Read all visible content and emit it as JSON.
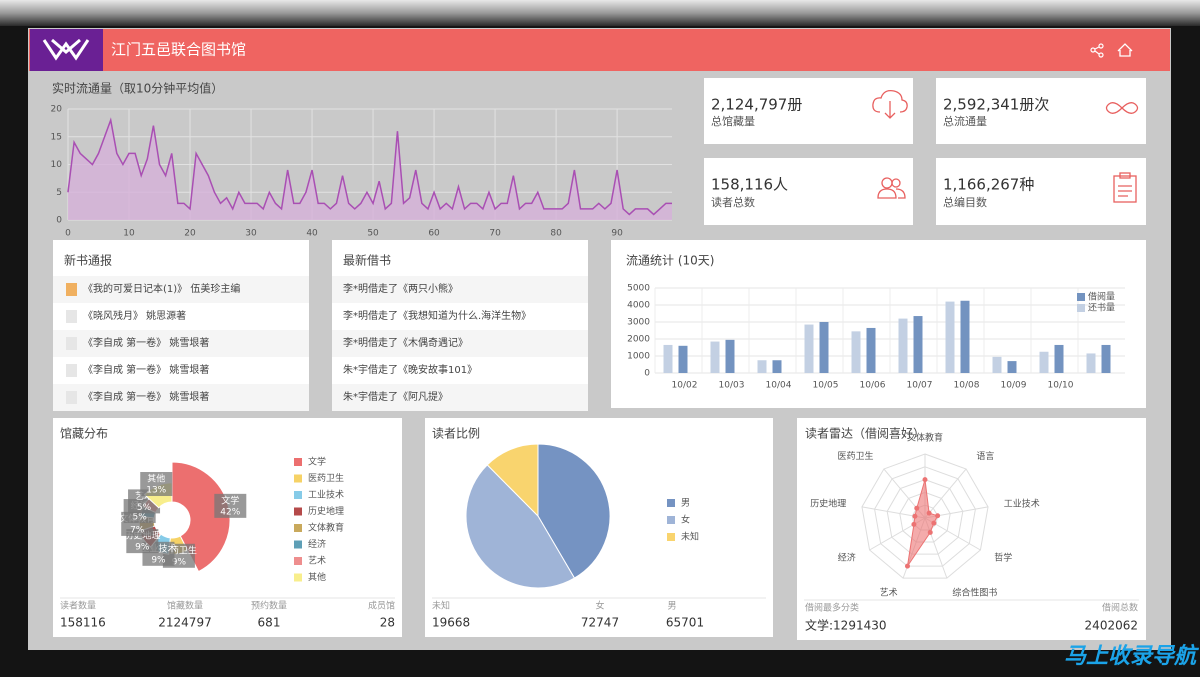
{
  "header": {
    "title": "江门五邑联合图书馆"
  },
  "stats": [
    {
      "value": "2,124,797册",
      "label": "总馆藏量"
    },
    {
      "value": "2,592,341册次",
      "label": "总流通量"
    },
    {
      "value": "158,116人",
      "label": "读者总数"
    },
    {
      "value": "1,166,267种",
      "label": "总编目数"
    }
  ],
  "new_books": {
    "title": "新书通报",
    "items": [
      "《我的可爱日记本(1)》 伍美珍主编",
      "《晓风残月》 姚思源著",
      "《李自成 第一卷》 姚雪垠著",
      "《李自成 第一卷》 姚雪垠著",
      "《李自成 第一卷》 姚雪垠著"
    ]
  },
  "latest_borrow": {
    "title": "最新借书",
    "items": [
      "李*明借走了《两只小熊》",
      "李*明借走了《我想知道为什么.海洋生物》",
      "李*明借走了《木偶奇遇记》",
      "朱*宇借走了《晚安故事101》",
      "朱*宇借走了《阿凡提》"
    ]
  },
  "chart_data": [
    {
      "type": "line",
      "title": "实时流通量（取10分钟平均值）",
      "color": "#a94fb3",
      "fill": "#d6b2da",
      "grid": true,
      "x": [
        0,
        1,
        2,
        3,
        4,
        5,
        6,
        7,
        8,
        9,
        10,
        11,
        12,
        13,
        14,
        15,
        16,
        17,
        18,
        19,
        20,
        21,
        22,
        23,
        24,
        25,
        26,
        27,
        28,
        29,
        30,
        31,
        32,
        33,
        34,
        35,
        36,
        37,
        38,
        39,
        40,
        41,
        42,
        43,
        44,
        45,
        46,
        47,
        48,
        49,
        50,
        51,
        52,
        53,
        54,
        55,
        56,
        57,
        58,
        59,
        60,
        61,
        62,
        63,
        64,
        65,
        66,
        67,
        68,
        69,
        70,
        71,
        72,
        73,
        74,
        75,
        76,
        77,
        78,
        79,
        80,
        81,
        82,
        83,
        84,
        85,
        86,
        87,
        88,
        89,
        90,
        91,
        92,
        93,
        94,
        95,
        96,
        97,
        98,
        99
      ],
      "values": [
        5,
        14,
        12,
        11,
        10,
        12,
        15,
        18,
        12,
        10,
        12,
        12,
        8,
        11,
        17,
        10,
        8,
        12,
        3,
        3,
        2,
        12,
        10,
        8,
        5,
        3,
        4,
        2,
        5,
        3,
        3,
        3,
        2,
        5,
        3,
        2,
        9,
        3,
        3,
        5,
        9,
        3,
        3,
        2,
        3,
        8,
        3,
        2,
        3,
        5,
        3,
        7,
        2,
        3,
        16,
        3,
        4,
        9,
        3,
        2,
        5,
        2,
        3,
        2,
        6,
        2,
        3,
        3,
        2,
        5,
        2,
        3,
        3,
        8,
        2,
        3,
        3,
        5,
        2,
        2,
        2,
        2,
        3,
        9,
        2,
        2,
        2,
        3,
        2,
        3,
        9,
        2,
        1,
        2,
        2,
        2,
        1,
        2,
        3,
        3
      ],
      "xlim": [
        0,
        99
      ],
      "xticks": [
        0,
        10,
        20,
        30,
        40,
        50,
        60,
        70,
        80,
        90
      ],
      "ylim": [
        0,
        20
      ],
      "yticks": [
        0,
        5,
        10,
        15,
        20
      ]
    },
    {
      "type": "bar",
      "title": "流通统计 (10天)",
      "grid": true,
      "legend": "top-right",
      "categories": [
        "10/02",
        "10/03",
        "10/04",
        "10/05",
        "10/06",
        "10/07",
        "10/08",
        "10/09",
        "10/10",
        null
      ],
      "series": [
        {
          "name": "借阅量",
          "color": "#7393c0",
          "values": [
            1600,
            1950,
            750,
            3000,
            2650,
            3350,
            4250,
            700,
            1650,
            1650
          ]
        },
        {
          "name": "还书量",
          "color": "#c3d0e3",
          "values": [
            1650,
            1850,
            750,
            2850,
            2450,
            3200,
            4200,
            950,
            1250,
            1150
          ]
        }
      ],
      "ylim": [
        0,
        5000
      ],
      "yticks": [
        0,
        1000,
        2000,
        3000,
        4000,
        5000
      ]
    },
    {
      "type": "pie",
      "title": "馆藏分布",
      "rose": true,
      "donut": true,
      "categories": [
        "文学",
        "医药卫生",
        "工业技术",
        "历史地理",
        "文体教育",
        "经济",
        "艺术",
        "其他"
      ],
      "values": [
        42,
        9,
        9,
        9,
        7,
        5,
        5,
        13
      ],
      "value_labels": [
        "42%",
        "9%",
        "9%",
        "9%",
        "7%",
        "5%",
        "5%",
        "13%"
      ],
      "colors": [
        "#ec6f6f",
        "#f6d266",
        "#86cbe8",
        "#b54a4a",
        "#c9a95c",
        "#5e9fb6",
        "#ee8e8e",
        "#f8ee8c"
      ]
    },
    {
      "type": "pie",
      "title": "读者比例",
      "categories": [
        "男",
        "女",
        "未知"
      ],
      "values": [
        65701,
        72747,
        19668
      ],
      "colors": [
        "#7593c2",
        "#9fb4d7",
        "#f9d46e"
      ]
    },
    {
      "type": "radar",
      "title": "读者雷达（借阅喜好）",
      "categories": [
        "文体教育",
        "语言",
        "工业技术",
        "哲学",
        "综合性图书",
        "艺术",
        "经济",
        "历史地理",
        "医药卫生"
      ],
      "values": [
        30,
        5,
        10,
        8,
        12,
        40,
        10,
        8,
        10
      ],
      "ylim": [
        0,
        50
      ],
      "color": "#ec7373"
    }
  ],
  "collection_stats": [
    {
      "label": "读者数量",
      "value": 158116
    },
    {
      "label": "馆藏数量",
      "value": 2124797
    },
    {
      "label": "预约数量",
      "value": 681
    },
    {
      "label": "成员馆",
      "value": 28
    }
  ],
  "radar_stats": {
    "top_label": "借阅最多分类",
    "top_value": "文学:1291430",
    "total_label": "借阅总数",
    "total_value": 2402062
  },
  "watermark": "马上收录导航"
}
